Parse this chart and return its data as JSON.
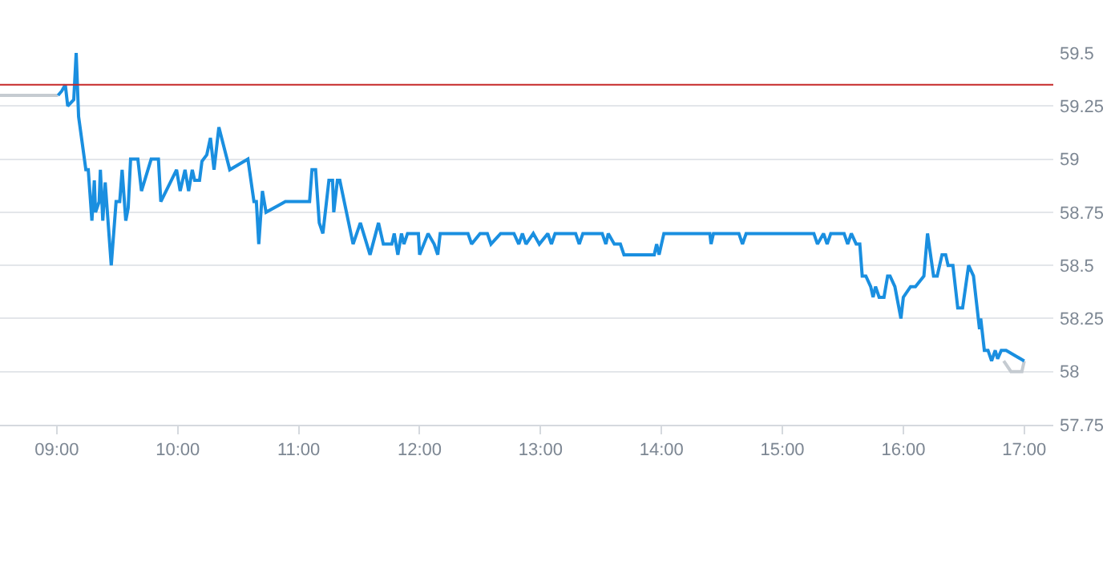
{
  "chart_data": {
    "type": "line",
    "xlim": [
      8.53,
      17.24
    ],
    "ylim": [
      57.75,
      59.5
    ],
    "xticks": [
      {
        "value": 9,
        "label": "09:00"
      },
      {
        "value": 10,
        "label": "10:00"
      },
      {
        "value": 11,
        "label": "11:00"
      },
      {
        "value": 12,
        "label": "12:00"
      },
      {
        "value": 13,
        "label": "13:00"
      },
      {
        "value": 14,
        "label": "14:00"
      },
      {
        "value": 15,
        "label": "15:00"
      },
      {
        "value": 16,
        "label": "16:00"
      },
      {
        "value": 17,
        "label": "17:00"
      }
    ],
    "yticks": [
      57.75,
      58,
      58.25,
      58.5,
      58.75,
      59,
      59.25,
      59.5
    ],
    "grid": "y",
    "marker": "none",
    "line_style": "solid",
    "ref_lines": [
      {
        "axis": "y",
        "value": 59.35,
        "color": "#c62828"
      }
    ],
    "series": [
      {
        "color": "#c5cbd1",
        "x": [
          8.53,
          9.01,
          12.5,
          16.83,
          16.89,
          16.98,
          17.0
        ],
        "values": [
          59.3,
          59.3,
          null,
          58.05,
          58.0,
          58.0,
          58.05
        ]
      },
      {
        "color": "#1a8fe0",
        "x": [
          9.01,
          9.04,
          9.07,
          9.09,
          9.14,
          9.16,
          9.18,
          9.24,
          9.26,
          9.29,
          9.31,
          9.32,
          9.35,
          9.36,
          9.38,
          9.4,
          9.45,
          9.49,
          9.52,
          9.54,
          9.57,
          9.59,
          9.61,
          9.67,
          9.7,
          9.78,
          9.84,
          9.86,
          9.99,
          10.02,
          10.06,
          10.09,
          10.12,
          10.14,
          10.18,
          10.2,
          10.24,
          10.27,
          10.3,
          10.34,
          10.43,
          10.58,
          10.63,
          10.65,
          10.67,
          10.7,
          10.73,
          10.89,
          11.09,
          11.11,
          11.14,
          11.17,
          11.2,
          11.25,
          11.28,
          11.29,
          11.32,
          11.34,
          11.45,
          11.51,
          11.59,
          11.66,
          11.7,
          11.77,
          11.79,
          11.82,
          11.85,
          11.87,
          11.9,
          11.99,
          12.0,
          12.07,
          12.12,
          12.15,
          12.17,
          12.4,
          12.43,
          12.5,
          12.56,
          12.59,
          12.67,
          12.78,
          12.82,
          12.85,
          12.88,
          12.94,
          12.99,
          13.06,
          13.09,
          13.12,
          13.29,
          13.32,
          13.35,
          13.51,
          13.54,
          13.56,
          13.61,
          13.66,
          13.69,
          13.94,
          13.96,
          13.98,
          14.02,
          14.4,
          14.41,
          14.43,
          14.64,
          14.67,
          14.7,
          15.26,
          15.29,
          15.34,
          15.37,
          15.4,
          15.51,
          15.54,
          15.57,
          15.61,
          15.64,
          15.66,
          15.69,
          15.73,
          15.75,
          15.77,
          15.8,
          15.84,
          15.87,
          15.89,
          15.93,
          15.98,
          16.0,
          16.06,
          16.1,
          16.17,
          16.2,
          16.25,
          16.28,
          16.32,
          16.35,
          16.37,
          16.41,
          16.45,
          16.49,
          16.54,
          16.58,
          16.6,
          16.61,
          16.63,
          16.64,
          16.67,
          16.7,
          16.73,
          16.76,
          16.78,
          16.81,
          16.85,
          17.0
        ],
        "values": [
          59.3,
          59.32,
          59.35,
          59.25,
          59.28,
          59.5,
          59.2,
          58.95,
          58.95,
          58.71,
          58.9,
          58.75,
          58.8,
          58.95,
          58.71,
          58.89,
          58.5,
          58.8,
          58.8,
          58.95,
          58.71,
          58.77,
          59.0,
          59.0,
          58.85,
          59.0,
          59.0,
          58.8,
          58.95,
          58.85,
          58.95,
          58.85,
          58.95,
          58.9,
          58.9,
          58.99,
          59.02,
          59.1,
          58.95,
          59.15,
          58.95,
          59.0,
          58.8,
          58.8,
          58.6,
          58.85,
          58.75,
          58.8,
          58.8,
          58.95,
          58.95,
          58.7,
          58.65,
          58.9,
          58.9,
          58.75,
          58.9,
          58.9,
          58.6,
          58.7,
          58.55,
          58.7,
          58.6,
          58.6,
          58.65,
          58.55,
          58.65,
          58.6,
          58.65,
          58.65,
          58.55,
          58.65,
          58.6,
          58.55,
          58.65,
          58.65,
          58.6,
          58.65,
          58.65,
          58.6,
          58.65,
          58.65,
          58.6,
          58.65,
          58.6,
          58.65,
          58.6,
          58.65,
          58.6,
          58.65,
          58.65,
          58.6,
          58.65,
          58.65,
          58.6,
          58.65,
          58.6,
          58.6,
          58.55,
          58.55,
          58.6,
          58.55,
          58.65,
          58.65,
          58.6,
          58.65,
          58.65,
          58.6,
          58.65,
          58.65,
          58.6,
          58.65,
          58.6,
          58.65,
          58.65,
          58.6,
          58.65,
          58.6,
          58.6,
          58.45,
          58.45,
          58.4,
          58.35,
          58.4,
          58.35,
          58.35,
          58.45,
          58.45,
          58.4,
          58.25,
          58.35,
          58.4,
          58.4,
          58.45,
          58.65,
          58.45,
          58.45,
          58.55,
          58.55,
          58.5,
          58.5,
          58.3,
          58.3,
          58.5,
          58.45,
          58.35,
          58.3,
          58.2,
          58.25,
          58.1,
          58.1,
          58.05,
          58.1,
          58.06,
          58.1,
          58.1,
          58.05
        ]
      }
    ]
  }
}
